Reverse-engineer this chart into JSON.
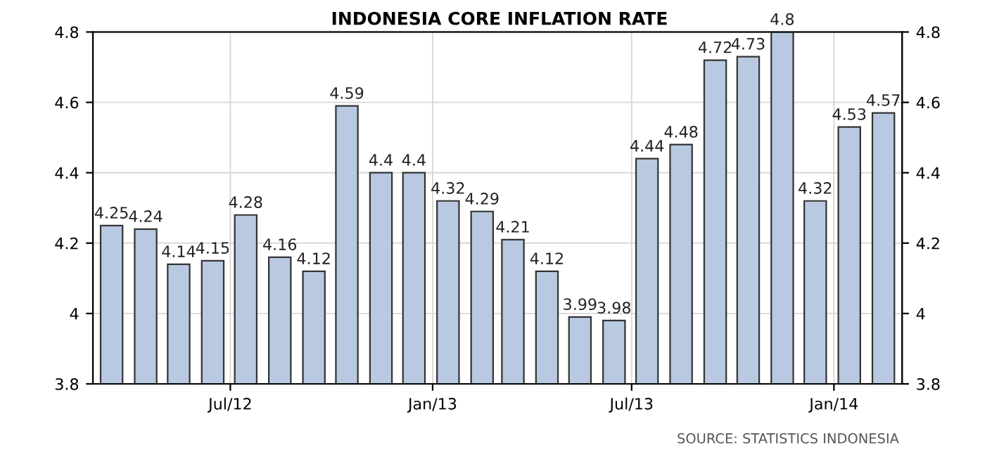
{
  "chart_data": {
    "type": "bar",
    "title": "INDONESIA CORE INFLATION RATE",
    "x": [
      "2012-03-15",
      "2012-04-15",
      "2012-05-15",
      "2012-06-15",
      "2012-07-15",
      "2012-08-15",
      "2012-09-15",
      "2012-10-15",
      "2012-11-15",
      "2012-12-15",
      "2013-01-15",
      "2013-02-15",
      "2013-03-15",
      "2013-04-15",
      "2013-05-15",
      "2013-06-15",
      "2013-07-15",
      "2013-08-15",
      "2013-09-15",
      "2013-10-15",
      "2013-11-15",
      "2013-12-15",
      "2014-01-15",
      "2014-02-15"
    ],
    "values": [
      4.25,
      4.24,
      4.14,
      4.15,
      4.28,
      4.16,
      4.12,
      4.59,
      4.4,
      4.4,
      4.32,
      4.29,
      4.21,
      4.12,
      3.99,
      3.98,
      4.44,
      4.48,
      4.72,
      4.73,
      4.8,
      4.32,
      4.53,
      4.57
    ],
    "color": "#b8c9e1",
    "data_labels": true,
    "xlim": [
      "2012-02-27",
      "2014-03-04"
    ],
    "xticks": [
      {
        "value": "2012-07-01",
        "label": "Jul/12"
      },
      {
        "value": "2013-01-01",
        "label": "Jan/13"
      },
      {
        "value": "2013-07-01",
        "label": "Jul/13"
      },
      {
        "value": "2014-01-01",
        "label": "Jan/14"
      }
    ],
    "ylim": [
      3.8,
      4.8
    ],
    "yticks": [
      3.8,
      4,
      4.2,
      4.4,
      4.6,
      4.8
    ],
    "y2lim": [
      3.8,
      4.8
    ],
    "y2ticks": [
      3.8,
      4,
      4.2,
      4.4,
      4.6,
      4.8
    ],
    "grid": true,
    "annotations": [
      "SOURCE: STATISTICS INDONESIA"
    ]
  }
}
